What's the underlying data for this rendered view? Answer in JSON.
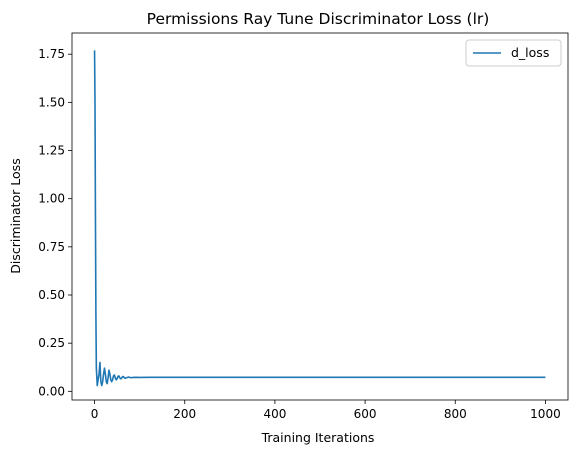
{
  "chart_data": {
    "type": "line",
    "title": "Permissions Ray Tune Discriminator Loss (lr)",
    "xlabel": "Training Iterations",
    "ylabel": "Discriminator Loss",
    "xlim": [
      -50,
      1050
    ],
    "ylim": [
      -0.045,
      1.86
    ],
    "xticks": [
      0,
      200,
      400,
      600,
      800,
      1000
    ],
    "xtick_labels": [
      "0",
      "200",
      "400",
      "600",
      "800",
      "1000"
    ],
    "yticks": [
      0.0,
      0.25,
      0.5,
      0.75,
      1.0,
      1.25,
      1.5,
      1.75
    ],
    "ytick_labels": [
      "0.00",
      "0.25",
      "0.50",
      "0.75",
      "1.00",
      "1.25",
      "1.50",
      "1.75"
    ],
    "grid": false,
    "legend_position": "top-right",
    "series": [
      {
        "name": "d_loss",
        "color": "#1f77b4",
        "x": [
          0,
          1,
          2,
          3,
          4,
          6,
          8,
          10,
          12,
          14,
          16,
          18,
          20,
          22,
          24,
          26,
          28,
          30,
          32,
          34,
          36,
          38,
          40,
          42,
          44,
          46,
          48,
          50,
          52,
          54,
          56,
          58,
          60,
          62,
          64,
          66,
          68,
          70,
          75,
          80,
          90,
          100,
          120,
          150,
          200,
          300,
          400,
          500,
          600,
          700,
          800,
          900,
          1000
        ],
        "y": [
          1.77,
          1.5,
          0.9,
          0.4,
          0.12,
          0.03,
          0.06,
          0.09,
          0.15,
          0.05,
          0.03,
          0.05,
          0.09,
          0.12,
          0.09,
          0.05,
          0.04,
          0.07,
          0.11,
          0.09,
          0.06,
          0.05,
          0.06,
          0.08,
          0.085,
          0.07,
          0.06,
          0.065,
          0.078,
          0.08,
          0.07,
          0.065,
          0.068,
          0.076,
          0.077,
          0.07,
          0.068,
          0.07,
          0.074,
          0.071,
          0.073,
          0.072,
          0.073,
          0.073,
          0.073,
          0.073,
          0.073,
          0.073,
          0.073,
          0.073,
          0.073,
          0.073,
          0.073
        ]
      }
    ]
  }
}
